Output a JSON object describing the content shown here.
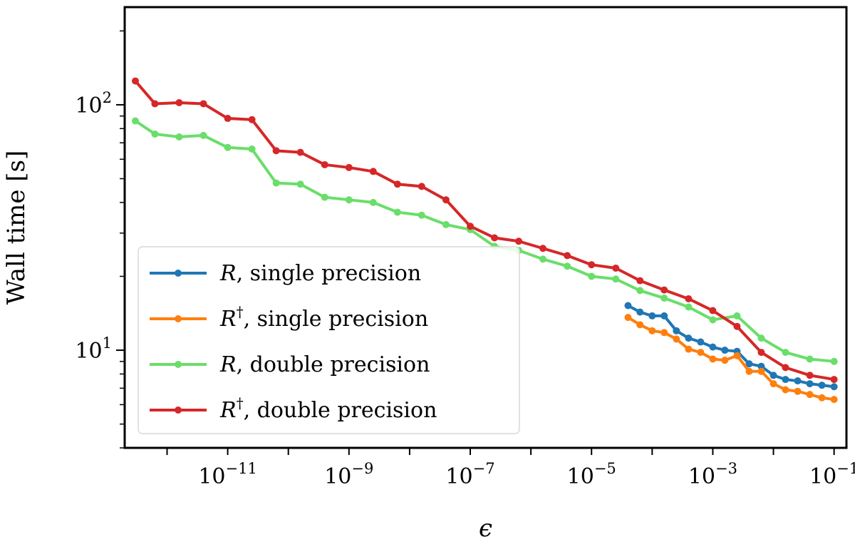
{
  "chart_data": {
    "type": "line",
    "xscale": "log",
    "yscale": "log",
    "xlabel": "ϵ",
    "ylabel": "Wall time [s]",
    "xlim": [
      2e-13,
      0.16
    ],
    "ylim": [
      4.0,
      250
    ],
    "x_ticks": [
      {
        "value": 1e-11,
        "base": "10",
        "exp": "−11"
      },
      {
        "value": 1e-09,
        "base": "10",
        "exp": "−9"
      },
      {
        "value": 1e-07,
        "base": "10",
        "exp": "−7"
      },
      {
        "value": 1e-05,
        "base": "10",
        "exp": "−5"
      },
      {
        "value": 0.001,
        "base": "10",
        "exp": "−3"
      },
      {
        "value": 0.1,
        "base": "10",
        "exp": "−1"
      }
    ],
    "y_ticks": [
      {
        "value": 10,
        "base": "10",
        "exp": "1"
      },
      {
        "value": 100,
        "base": "10",
        "exp": "2"
      }
    ],
    "grid": false,
    "legend": {
      "placement": "lower-left"
    },
    "series": [
      {
        "name": "R, single precision",
        "legend_main": "R",
        "legend_sup": "",
        "legend_rest": ", single precision",
        "color": "#1f77b4",
        "x": [
          4e-05,
          6.3e-05,
          0.0001,
          0.000158,
          0.000251,
          0.000398,
          0.00063,
          0.001,
          0.00158,
          0.00251,
          0.00398,
          0.0063,
          0.01,
          0.0158,
          0.0251,
          0.0398,
          0.063,
          0.1
        ],
        "y": [
          15.2,
          14.3,
          13.8,
          13.8,
          12.0,
          11.2,
          10.8,
          10.3,
          10.0,
          9.9,
          8.8,
          8.6,
          7.9,
          7.6,
          7.5,
          7.3,
          7.2,
          7.1
        ]
      },
      {
        "name": "R†, single precision",
        "legend_main": "R",
        "legend_sup": "†",
        "legend_rest": ", single precision",
        "color": "#ff7f0e",
        "x": [
          4e-05,
          6.3e-05,
          0.0001,
          0.000158,
          0.000251,
          0.000398,
          0.00063,
          0.001,
          0.00158,
          0.00251,
          0.00398,
          0.0063,
          0.01,
          0.0158,
          0.0251,
          0.0398,
          0.063,
          0.1
        ],
        "y": [
          13.6,
          12.7,
          12.0,
          11.8,
          11.1,
          10.1,
          9.8,
          9.2,
          9.1,
          9.5,
          8.2,
          8.2,
          7.3,
          6.9,
          6.8,
          6.6,
          6.4,
          6.3
        ]
      },
      {
        "name": "R, double precision",
        "legend_main": "R",
        "legend_sup": "",
        "legend_rest": ", double precision",
        "color": "#6ade6a",
        "x": [
          3e-13,
          6.3e-13,
          1.58e-12,
          3.98e-12,
          1e-11,
          2.51e-11,
          6.3e-11,
          1.58e-10,
          3.98e-10,
          1e-09,
          2.51e-09,
          6.3e-09,
          1.58e-08,
          3.98e-08,
          1e-07,
          2.51e-07,
          6.3e-07,
          1.58e-06,
          3.98e-06,
          1e-05,
          2.51e-05,
          6.3e-05,
          0.000158,
          0.000398,
          0.001,
          0.00251,
          0.0063,
          0.0158,
          0.0398,
          0.1
        ],
        "y": [
          86,
          76,
          74,
          75,
          67,
          66,
          48,
          47.5,
          42,
          41,
          40,
          36.5,
          35.5,
          32.5,
          31,
          26.5,
          25.5,
          23.5,
          22,
          20,
          19.5,
          17.5,
          16.3,
          15,
          13.3,
          13.8,
          11.2,
          9.8,
          9.2,
          9.0
        ]
      },
      {
        "name": "R†, double precision",
        "legend_main": "R",
        "legend_sup": "†",
        "legend_rest": ", double precision",
        "color": "#d62728",
        "x": [
          3e-13,
          6.3e-13,
          1.58e-12,
          3.98e-12,
          1e-11,
          2.51e-11,
          6.3e-11,
          1.58e-10,
          3.98e-10,
          1e-09,
          2.51e-09,
          6.3e-09,
          1.58e-08,
          3.98e-08,
          1e-07,
          2.51e-07,
          6.3e-07,
          1.58e-06,
          3.98e-06,
          1e-05,
          2.51e-05,
          6.3e-05,
          0.000158,
          0.000398,
          0.001,
          0.00251,
          0.0063,
          0.0158,
          0.0398,
          0.1
        ],
        "y": [
          125,
          101,
          102,
          101,
          88,
          87,
          65,
          64,
          57,
          55.5,
          53.5,
          47.5,
          46.5,
          41,
          32,
          28.7,
          27.8,
          26,
          24.3,
          22.3,
          21.6,
          19.2,
          17.6,
          16.2,
          14.5,
          12.5,
          9.8,
          8.5,
          7.9,
          7.6
        ]
      }
    ]
  }
}
